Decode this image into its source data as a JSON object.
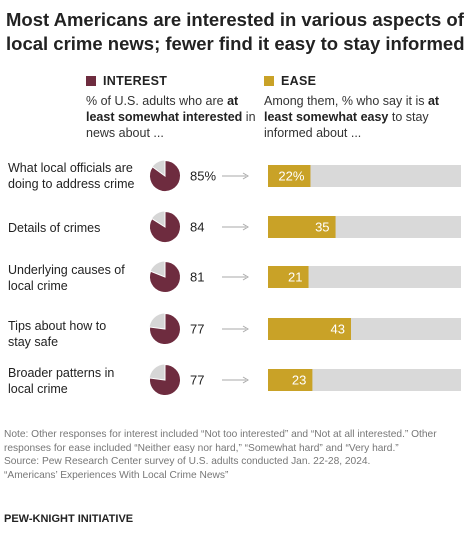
{
  "title": "Most Americans are interested in various aspects of local crime news; fewer find it easy to stay informed",
  "legend": {
    "interest": {
      "label": "INTEREST",
      "desc_pre": "% of U.S. adults who are",
      "desc_bold": "at least somewhat interested",
      "desc_post": "in news about ..."
    },
    "ease": {
      "label": "EASE",
      "desc_pre": "Among them, % who say it is",
      "desc_bold": "at least somewhat easy",
      "desc_post": "to stay informed about ..."
    }
  },
  "colors": {
    "interest": "#6e2c3f",
    "ease": "#c9a227",
    "bar_track": "#d9d9d9",
    "pie_rest": "#d6d6d6",
    "arrow": "#aaaaaa"
  },
  "chart_data": {
    "type": "bar",
    "categories": [
      "What local officials are doing to address crime",
      "Details of crimes",
      "Underlying causes of local crime",
      "Tips about how to stay safe",
      "Broader patterns in local crime"
    ],
    "interest_labels": [
      "85%",
      "84",
      "81",
      "77",
      "77"
    ],
    "ease_labels": [
      "22%",
      "35",
      "21",
      "43",
      "23"
    ],
    "series": [
      {
        "name": "INTEREST",
        "values": [
          85,
          84,
          81,
          77,
          77
        ]
      },
      {
        "name": "EASE",
        "values": [
          22,
          35,
          21,
          43,
          23
        ]
      }
    ],
    "ylim": [
      0,
      100
    ]
  },
  "notes": {
    "note1": "Note: Other responses for interest included “Not too interested” and “Not at all interested.” Other responses for ease included “Neither easy nor hard,” “Somewhat hard” and “Very hard.”",
    "source": "Source: Pew Research Center survey of U.S. adults conducted Jan. 22-28, 2024.",
    "report": "“Americans’ Experiences With Local Crime News”"
  },
  "brand": "PEW-KNIGHT INITIATIVE"
}
